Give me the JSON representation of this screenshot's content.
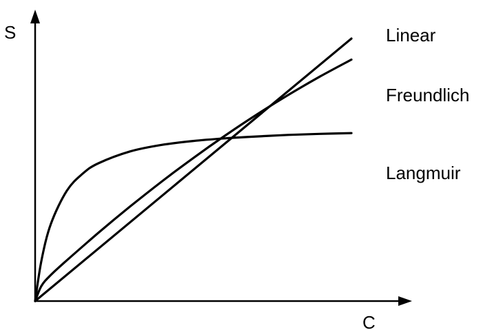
{
  "chart_data": {
    "type": "line",
    "title": "",
    "xlabel": "C",
    "ylabel": "S",
    "xlim": [
      0,
      10
    ],
    "ylim": [
      0,
      10
    ],
    "grid": false,
    "legend": "inline-right",
    "series": [
      {
        "name": "Linear",
        "x": [
          0,
          10
        ],
        "y": [
          0,
          10
        ]
      },
      {
        "name": "Freundlich",
        "x": [
          0,
          0.2,
          0.5,
          1,
          2,
          3,
          4,
          5,
          6,
          7,
          8,
          9,
          10
        ],
        "y": [
          0,
          0.58,
          1.0,
          1.55,
          2.6,
          3.6,
          4.55,
          5.45,
          6.3,
          7.1,
          7.85,
          8.55,
          9.2
        ]
      },
      {
        "name": "Langmuir",
        "x": [
          0,
          0.2,
          0.5,
          1,
          1.5,
          2,
          3,
          4,
          5,
          6,
          7,
          8,
          9,
          10
        ],
        "y": [
          0,
          1.55,
          2.95,
          4.2,
          4.85,
          5.25,
          5.7,
          5.95,
          6.1,
          6.2,
          6.27,
          6.33,
          6.37,
          6.4
        ]
      }
    ]
  }
}
